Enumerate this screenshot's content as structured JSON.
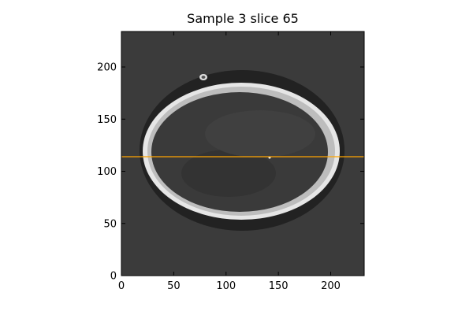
{
  "figure": {
    "title": "Sample 3 slice 65"
  },
  "chart_data": {
    "type": "heatmap",
    "title": "Sample 3 slice 65",
    "xlabel": "",
    "ylabel": "",
    "xlim": [
      0,
      232
    ],
    "ylim": [
      0,
      234
    ],
    "x_ticks": [
      0,
      50,
      100,
      150,
      200
    ],
    "y_ticks": [
      0,
      50,
      100,
      150,
      200
    ],
    "x_tick_labels": [
      "0",
      "50",
      "100",
      "150",
      "200"
    ],
    "y_tick_labels": [
      "0",
      "50",
      "100",
      "150",
      "200"
    ],
    "horizontal_line": {
      "y": 114,
      "color": "#ffa500"
    },
    "image_description": "grayscale axial CT slice of a skull; bright white bone ring on dark gray background",
    "colors": {
      "background": "#3b3b3b",
      "bone": "#e9e9e9",
      "brain": "#3a3a3a",
      "skin": "#202020"
    }
  }
}
